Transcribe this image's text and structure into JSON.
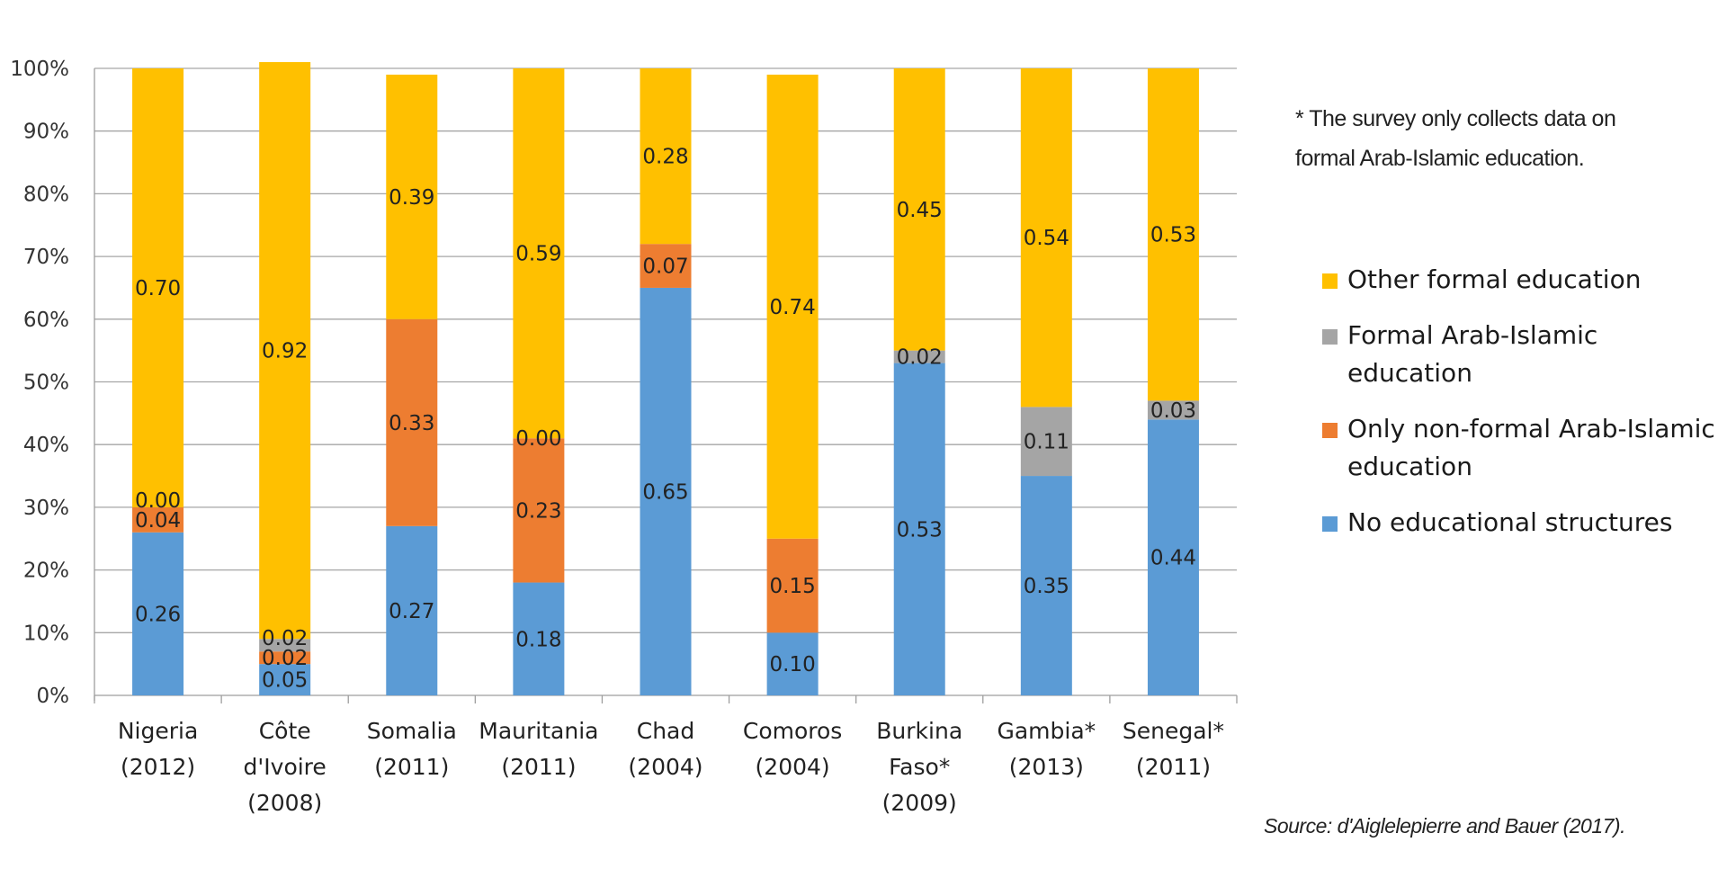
{
  "chart_data": {
    "type": "bar",
    "stacked": true,
    "categories": [
      [
        "Nigeria",
        "(2012)"
      ],
      [
        "Côte",
        "d'Ivoire",
        "(2008)"
      ],
      [
        "Somalia",
        "(2011)"
      ],
      [
        "Mauritania",
        "(2011)"
      ],
      [
        "Chad",
        "(2004)"
      ],
      [
        "Comoros",
        "(2004)"
      ],
      [
        "Burkina",
        "Faso*",
        "(2009)"
      ],
      [
        "Gambia*",
        "(2013)"
      ],
      [
        "Senegal*",
        "(2011)"
      ]
    ],
    "series": [
      {
        "name": "No educational structures",
        "color": "#5b9bd5",
        "values": [
          0.26,
          0.05,
          0.27,
          0.18,
          0.65,
          0.1,
          0.53,
          0.35,
          0.44
        ],
        "labels": [
          "0.26",
          "0.05",
          "0.27",
          "0.18",
          "0.65",
          "0.10",
          "0.53",
          "0.35",
          "0.44"
        ]
      },
      {
        "name": "Only non-formal Arab-Islamic education",
        "color": "#ed7d31",
        "values": [
          0.04,
          0.02,
          0.33,
          0.23,
          0.07,
          0.15,
          0.0,
          0.0,
          0.0
        ],
        "labels": [
          "0.04",
          "0.02",
          "0.33",
          "0.23",
          "0.07",
          "0.15",
          null,
          null,
          null
        ]
      },
      {
        "name": "Formal Arab-Islamic education",
        "color": "#a5a5a5",
        "values": [
          0.0,
          0.02,
          0.0,
          0.0,
          0.0,
          0.0,
          0.02,
          0.11,
          0.03
        ],
        "labels": [
          "0.00",
          "0.02",
          null,
          "0.00",
          null,
          null,
          "0.02",
          "0.11",
          "0.03"
        ]
      },
      {
        "name": "Other formal education",
        "color": "#ffc000",
        "values": [
          0.7,
          0.92,
          0.39,
          0.59,
          0.28,
          0.74,
          0.45,
          0.54,
          0.53
        ],
        "labels": [
          "0.70",
          "0.92",
          "0.39",
          "0.59",
          "0.28",
          "0.74",
          "0.45",
          "0.54",
          "0.53"
        ]
      }
    ],
    "y_ticks": [
      "0%",
      "10%",
      "20%",
      "30%",
      "40%",
      "50%",
      "60%",
      "70%",
      "80%",
      "90%",
      "100%"
    ],
    "ylim": [
      0,
      1
    ],
    "grid": true,
    "legend_position": "right"
  },
  "legend": [
    {
      "label": "Other formal education",
      "color": "#ffc000"
    },
    {
      "label": "Formal Arab-Islamic education",
      "color": "#a5a5a5"
    },
    {
      "label": "Only non-formal Arab-Islamic education",
      "color": "#ed7d31"
    },
    {
      "label": "No educational structures",
      "color": "#5b9bd5"
    }
  ],
  "note": "* The survey only collects data on formal Arab-Islamic education.",
  "source": "Source: d'Aiglelepierre and Bauer (2017)."
}
